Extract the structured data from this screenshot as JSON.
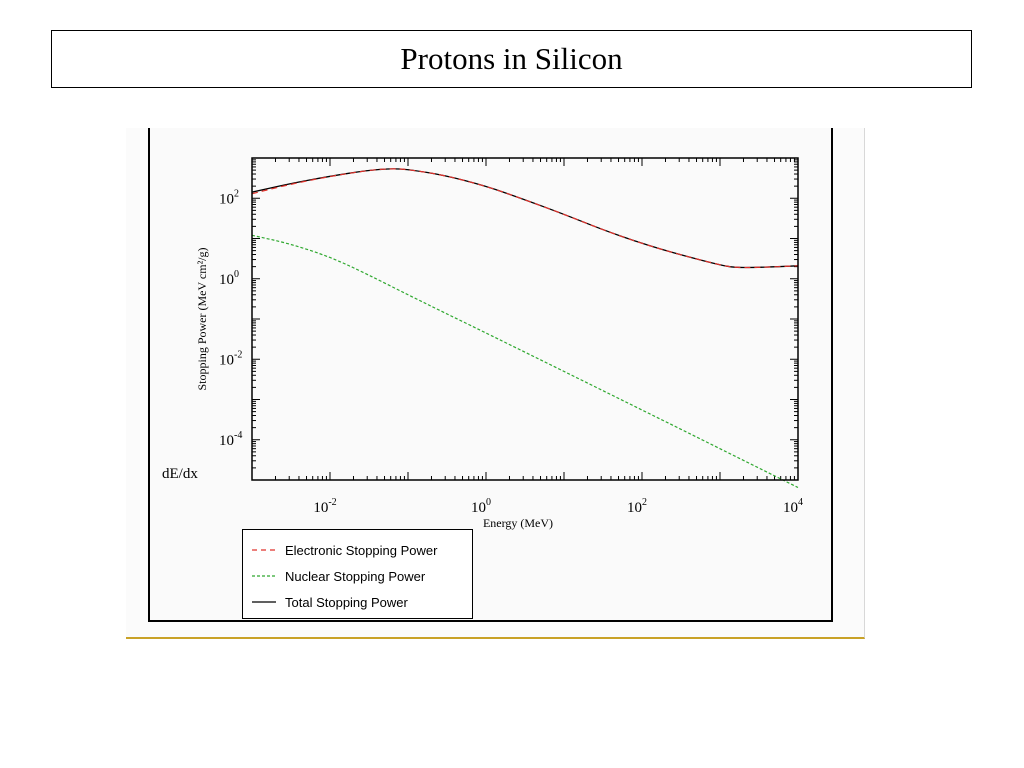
{
  "slide": {
    "title": "Protons in Silicon",
    "side_label": "dE/dx"
  },
  "colors": {
    "electronic": "#e0302a",
    "nuclear": "#2fa82f",
    "total": "#000000",
    "frame_accent": "#c9a227"
  },
  "chart_data": {
    "type": "line",
    "xscale": "log",
    "yscale": "log",
    "xlim": [
      0.001,
      10000
    ],
    "ylim": [
      1e-05,
      1000
    ],
    "xlabel": "Energy (MeV)",
    "ylabel": "Stopping Power (MeV cm²/g)",
    "xticks": [
      {
        "value": 0.01,
        "base": "10",
        "exp": "-2"
      },
      {
        "value": 1,
        "base": "10",
        "exp": "0"
      },
      {
        "value": 100,
        "base": "10",
        "exp": "2"
      },
      {
        "value": 10000,
        "base": "10",
        "exp": "4"
      }
    ],
    "yticks": [
      {
        "value": 100,
        "base": "10",
        "exp": "2"
      },
      {
        "value": 1,
        "base": "10",
        "exp": "0"
      },
      {
        "value": 0.01,
        "base": "10",
        "exp": "-2"
      },
      {
        "value": 0.0001,
        "base": "10",
        "exp": "-4"
      }
    ],
    "grid": false,
    "legend_position": "below",
    "series": [
      {
        "name": "Electronic Stopping Power",
        "style": "dashed",
        "color": "#e0302a",
        "x": [
          0.001,
          0.003,
          0.01,
          0.03,
          0.06,
          0.1,
          0.3,
          1,
          3,
          10,
          30,
          100,
          300,
          1000,
          1500,
          3000,
          10000
        ],
        "y": [
          130,
          220,
          350,
          490,
          545,
          520,
          370,
          200,
          95,
          40,
          17,
          7.5,
          4,
          2.2,
          1.9,
          1.9,
          2.1
        ]
      },
      {
        "name": "Nuclear Stopping Power",
        "style": "dashed",
        "color": "#2fa82f",
        "x": [
          0.001,
          0.003,
          0.01,
          0.03,
          0.1,
          0.3,
          1,
          10,
          100,
          1000,
          10000
        ],
        "y": [
          12,
          7.5,
          3.5,
          1.3,
          0.4,
          0.14,
          0.045,
          0.005,
          0.00055,
          6e-05,
          6.5e-06
        ]
      },
      {
        "name": "Total Stopping Power",
        "style": "solid",
        "color": "#000000",
        "x": [
          0.001,
          0.003,
          0.01,
          0.03,
          0.06,
          0.1,
          0.3,
          1,
          3,
          10,
          30,
          100,
          300,
          1000,
          1500,
          3000,
          10000
        ],
        "y": [
          142,
          228,
          354,
          491,
          546,
          520,
          370,
          200,
          95,
          40,
          17,
          7.5,
          4,
          2.2,
          1.9,
          1.9,
          2.1
        ]
      }
    ]
  }
}
